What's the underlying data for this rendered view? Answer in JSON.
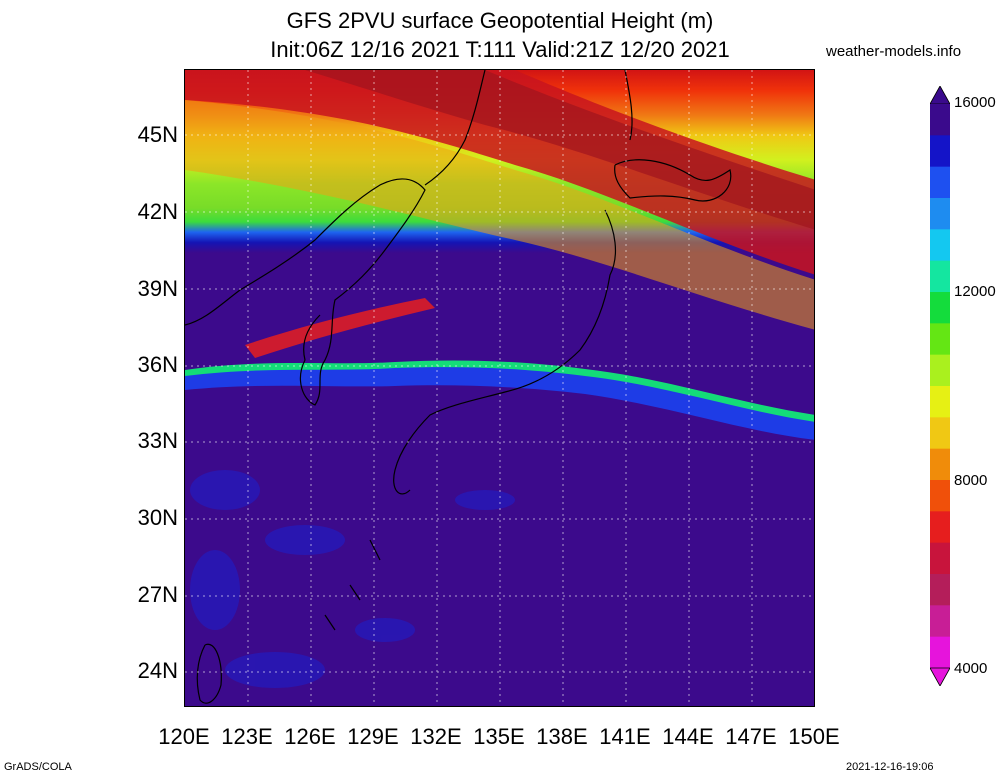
{
  "header": {
    "title_line1": "GFS 2PVU surface Geopotential Height (m)",
    "title_line2": "Init:06Z 12/16 2021 T:111 Valid:21Z 12/20 2021",
    "site": "weather-models.info"
  },
  "map": {
    "region": "Japan / East Asia",
    "lat_labels": [
      "45N",
      "42N",
      "39N",
      "36N",
      "33N",
      "30N",
      "27N",
      "24N"
    ],
    "lon_labels": [
      "120E",
      "123E",
      "126E",
      "129E",
      "132E",
      "135E",
      "138E",
      "141E",
      "144E",
      "147E",
      "150E"
    ]
  },
  "colorbar": {
    "labels": [
      "16000",
      "12000",
      "8000",
      "4000"
    ],
    "colors": [
      "#3a0a8c",
      "#1414c8",
      "#1e50f0",
      "#1e8cf0",
      "#14c8f0",
      "#14e6a0",
      "#14dc3c",
      "#64e614",
      "#aaf01e",
      "#e6f014",
      "#f0c814",
      "#f08c0a",
      "#f0500a",
      "#e61e1e",
      "#c8143c",
      "#b41e5a",
      "#c81e96",
      "#e614dc"
    ]
  },
  "footer": {
    "left": "GrADS/COLA",
    "right": "2021-12-16-19:06"
  }
}
